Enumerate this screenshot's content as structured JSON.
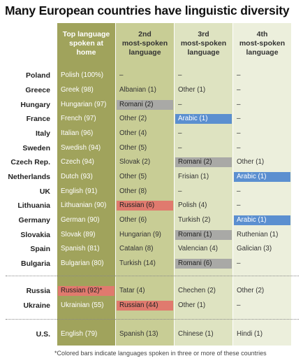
{
  "title": "Many European countries have linguistic diversity",
  "footnote": "*Colored bars indicate languages spoken in three or more of these countries",
  "colors": {
    "col_top": "#a0a35c",
    "col_2nd": "#c8cd95",
    "col_3rd": "#dee3c1",
    "col_4th": "#ecefdc",
    "highlight_russian": "#e07a6e",
    "highlight_romani": "#a9a9a6",
    "highlight_arabic": "#5b8fd0"
  },
  "chart_data": {
    "type": "table",
    "title": "Many European countries have linguistic diversity",
    "columns": [
      [
        "Top language",
        "spoken at",
        "home"
      ],
      [
        "2nd",
        "most-spoken",
        "language"
      ],
      [
        "3rd",
        "most-spoken",
        "language"
      ],
      [
        "4th",
        "most-spoken",
        "language"
      ]
    ],
    "rows": [
      {
        "country": "Poland",
        "cells": [
          "Polish (100%)",
          "–",
          "–",
          "–"
        ],
        "hl": [
          "",
          "",
          "",
          ""
        ]
      },
      {
        "country": "Greece",
        "cells": [
          "Greek (98)",
          "Albanian (1)",
          "Other (1)",
          "–"
        ],
        "hl": [
          "",
          "",
          "",
          ""
        ]
      },
      {
        "country": "Hungary",
        "cells": [
          "Hungarian (97)",
          "Romani (2)",
          "–",
          "–"
        ],
        "hl": [
          "",
          "gray",
          "",
          ""
        ]
      },
      {
        "country": "France",
        "cells": [
          "French (97)",
          "Other (2)",
          "Arabic (1)",
          "–"
        ],
        "hl": [
          "",
          "",
          "blue",
          ""
        ]
      },
      {
        "country": "Italy",
        "cells": [
          "Italian (96)",
          "Other (4)",
          "–",
          "–"
        ],
        "hl": [
          "",
          "",
          "",
          ""
        ]
      },
      {
        "country": "Sweden",
        "cells": [
          "Swedish (94)",
          "Other (5)",
          "–",
          "–"
        ],
        "hl": [
          "",
          "",
          "",
          ""
        ]
      },
      {
        "country": "Czech Rep.",
        "cells": [
          "Czech (94)",
          "Slovak (2)",
          "Romani (2)",
          "Other (1)"
        ],
        "hl": [
          "",
          "",
          "gray",
          ""
        ]
      },
      {
        "country": "Netherlands",
        "cells": [
          "Dutch (93)",
          "Other (5)",
          "Frisian (1)",
          "Arabic (1)"
        ],
        "hl": [
          "",
          "",
          "",
          "blue"
        ]
      },
      {
        "country": "UK",
        "cells": [
          "English (91)",
          "Other (8)",
          "–",
          "–"
        ],
        "hl": [
          "",
          "",
          "",
          ""
        ]
      },
      {
        "country": "Lithuania",
        "cells": [
          "Lithuanian (90)",
          "Russian (6)",
          "Polish (4)",
          "–"
        ],
        "hl": [
          "",
          "red",
          "",
          ""
        ]
      },
      {
        "country": "Germany",
        "cells": [
          "German (90)",
          "Other (6)",
          "Turkish (2)",
          "Arabic (1)"
        ],
        "hl": [
          "",
          "",
          "",
          "blue"
        ]
      },
      {
        "country": "Slovakia",
        "cells": [
          "Slovak (89)",
          "Hungarian (9)",
          "Romani (1)",
          "Ruthenian (1)"
        ],
        "hl": [
          "",
          "",
          "gray",
          ""
        ]
      },
      {
        "country": "Spain",
        "cells": [
          "Spanish (81)",
          "Catalan (8)",
          "Valencian (4)",
          "Galician (3)"
        ],
        "hl": [
          "",
          "",
          "",
          ""
        ]
      },
      {
        "country": "Bulgaria",
        "cells": [
          "Bulgarian (80)",
          "Turkish (14)",
          "Romani (6)",
          "–"
        ],
        "hl": [
          "",
          "",
          "gray",
          ""
        ]
      },
      {
        "country": "Russia",
        "cells": [
          "Russian (92)*",
          "Tatar (4)",
          "Chechen (2)",
          "Other (2)"
        ],
        "hl": [
          "red",
          "",
          "",
          ""
        ]
      },
      {
        "country": "Ukraine",
        "cells": [
          "Ukrainian (55)",
          "Russian (44)",
          "Other (1)",
          "–"
        ],
        "hl": [
          "",
          "red",
          "",
          ""
        ]
      },
      {
        "country": "U.S.",
        "cells": [
          "English (79)",
          "Spanish (13)",
          "Chinese (1)",
          "Hindi (1)"
        ],
        "hl": [
          "",
          "",
          "",
          ""
        ]
      }
    ]
  }
}
